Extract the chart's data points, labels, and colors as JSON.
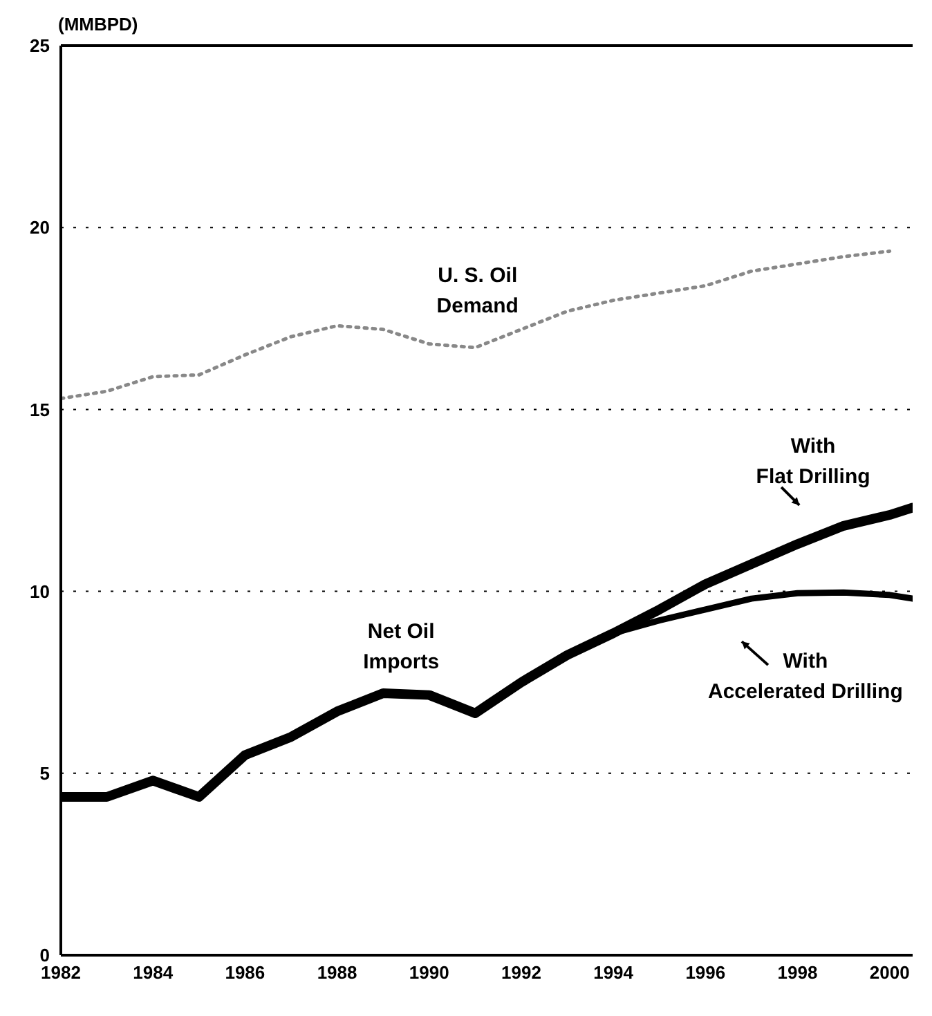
{
  "chart_data": {
    "type": "line",
    "ylabel": "(MMBPD)",
    "xlim": [
      1982,
      2000.5
    ],
    "xticks": [
      1982,
      1984,
      1986,
      1988,
      1990,
      1992,
      1994,
      1996,
      1998,
      2000
    ],
    "ylim": [
      0,
      25
    ],
    "yticks": [
      0,
      5,
      10,
      15,
      20,
      25
    ],
    "grid": "y",
    "marker": "none",
    "annotations": [
      {
        "text": "Net Oil Imports",
        "x": 1989,
        "y": 7.2
      }
    ],
    "series": [
      {
        "name": "U. S. Oil Demand",
        "color": "#888888",
        "line_style": "dotted",
        "x": [
          1982,
          1983,
          1984,
          1985,
          1986,
          1987,
          1988,
          1989,
          1990,
          1991,
          1992,
          1993,
          1994,
          1995,
          1996,
          1997,
          1998,
          1999,
          2000
        ],
        "values": [
          15.3,
          15.5,
          15.9,
          15.95,
          16.5,
          17.0,
          17.3,
          17.2,
          16.8,
          16.7,
          17.2,
          17.7,
          18.0,
          18.2,
          18.4,
          18.8,
          19.0,
          19.2,
          19.35
        ]
      },
      {
        "name": "With Flat Drilling",
        "color": "#000000",
        "line_style": "solid",
        "x": [
          1982,
          1983,
          1984,
          1985,
          1986,
          1987,
          1988,
          1989,
          1990,
          1991,
          1992,
          1993,
          1994,
          1995,
          1996,
          1997,
          1998,
          1999,
          2000,
          2000.5
        ],
        "values": [
          4.35,
          4.35,
          4.8,
          4.35,
          5.5,
          6.0,
          6.7,
          7.2,
          7.15,
          6.65,
          7.5,
          8.25,
          8.85,
          9.5,
          10.2,
          10.75,
          11.3,
          11.8,
          12.1,
          12.3
        ]
      },
      {
        "name": "With Accelerated Drilling",
        "color": "#000000",
        "line_style": "solid",
        "x": [
          1994,
          1995,
          1996,
          1997,
          1998,
          1999,
          2000,
          2000.5
        ],
        "values": [
          8.85,
          9.2,
          9.5,
          9.8,
          9.95,
          9.97,
          9.9,
          9.8
        ]
      }
    ]
  }
}
